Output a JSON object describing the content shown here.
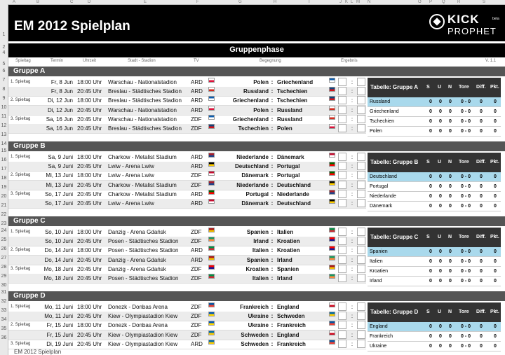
{
  "sheet": {
    "title": "EM 2012 Spielplan",
    "section": "Gruppenphase",
    "logo_top": "KICK",
    "logo_bottom": "PROPHET",
    "logo_beta": "beta",
    "tab_label": "EM 2012 Spielplan",
    "version": "V. 1.1"
  },
  "columns": [
    "A",
    "B",
    "C",
    "D",
    "E",
    "F",
    "G",
    "H",
    "I",
    "J",
    "K",
    "L",
    "M",
    "N",
    "O",
    "P",
    "Q",
    "R",
    "S"
  ],
  "rownums": [
    "1",
    "2",
    "4",
    "5",
    "6",
    "7",
    "8",
    "9",
    "10",
    "11",
    "12",
    "13",
    "14",
    "15",
    "16",
    "17",
    "18",
    "19",
    "20",
    "21",
    "22",
    "23",
    "24",
    "25",
    "26",
    "27",
    "28",
    "29",
    "30",
    "31",
    "32",
    "33",
    "34",
    "35",
    "36"
  ],
  "headers": {
    "spieltag": "Spieltag",
    "termin": "Termin",
    "uhrzeit": "Uhrzeit",
    "stadt": "Stadt - Stadion",
    "tv": "TV",
    "begegnung": "Begegnung",
    "ergebnis": "Ergebnis"
  },
  "table_header": {
    "s": "S",
    "u": "U",
    "n": "N",
    "tore": "Tore",
    "diff": "Diff.",
    "pkt": "Pkt."
  },
  "groups": [
    {
      "name": "Gruppe A",
      "table_title": "Tabelle: Gruppe A",
      "matches": [
        {
          "spt": "1. Spieltag",
          "day": "Fr, 8 Jun",
          "time": "18:00 Uhr",
          "venue": "Warschau - Nationalstadion",
          "tv": "ARD",
          "home": "Polen",
          "away": "Griechenland",
          "hf": "pl",
          "af": "gr"
        },
        {
          "spt": "",
          "day": "Fr, 8 Jun",
          "time": "20:45 Uhr",
          "venue": "Breslau - Städtisches Stadion",
          "tv": "ARD",
          "home": "Russland",
          "away": "Tschechien",
          "hf": "ru",
          "af": "cz"
        },
        {
          "spt": "2. Spieltag",
          "day": "Di, 12 Jun",
          "time": "18:00 Uhr",
          "venue": "Breslau - Städtisches Stadion",
          "tv": "ARD",
          "home": "Griechenland",
          "away": "Tschechien",
          "hf": "gr",
          "af": "cz"
        },
        {
          "spt": "",
          "day": "Di, 12 Jun",
          "time": "20:45 Uhr",
          "venue": "Warschau - Nationalstadion",
          "tv": "ARD",
          "home": "Polen",
          "away": "Russland",
          "hf": "pl",
          "af": "ru"
        },
        {
          "spt": "3. Spieltag",
          "day": "Sa, 16 Jun",
          "time": "20:45 Uhr",
          "venue": "Warschau - Nationalstadion",
          "tv": "ZDF",
          "home": "Griechenland",
          "away": "Russland",
          "hf": "gr",
          "af": "ru"
        },
        {
          "spt": "",
          "day": "Sa, 16 Jun",
          "time": "20:45 Uhr",
          "venue": "Breslau - Städtisches Stadion",
          "tv": "ZDF",
          "home": "Tschechien",
          "away": "Polen",
          "hf": "cz",
          "af": "pl"
        }
      ],
      "table": [
        "Russland",
        "Griechenland",
        "Tschechien",
        "Polen"
      ]
    },
    {
      "name": "Gruppe B",
      "table_title": "Tabelle: Gruppe B",
      "matches": [
        {
          "spt": "1. Spieltag",
          "day": "Sa, 9 Juni",
          "time": "18:00 Uhr",
          "venue": "Charkow - Metalist Stadium",
          "tv": "ARD",
          "home": "Niederlande",
          "away": "Dänemark",
          "hf": "nl",
          "af": "dk"
        },
        {
          "spt": "",
          "day": "Sa, 9 Juni",
          "time": "20:45 Uhr",
          "venue": "Lwiw - Arena Lwiw",
          "tv": "ARD",
          "home": "Deutschland",
          "away": "Portugal",
          "hf": "de",
          "af": "pt"
        },
        {
          "spt": "2. Spieltag",
          "day": "Mi, 13 Juni",
          "time": "18:00 Uhr",
          "venue": "Lwiw - Arena Lwiw",
          "tv": "ZDF",
          "home": "Dänemark",
          "away": "Portugal",
          "hf": "dk",
          "af": "pt"
        },
        {
          "spt": "",
          "day": "Mi, 13 Juni",
          "time": "20:45 Uhr",
          "venue": "Charkow - Metalist Stadium",
          "tv": "ZDF",
          "home": "Niederlande",
          "away": "Deutschland",
          "hf": "nl",
          "af": "de"
        },
        {
          "spt": "3. Spieltag",
          "day": "So, 17 Juni",
          "time": "20:45 Uhr",
          "venue": "Charkow - Metalist Stadium",
          "tv": "ARD",
          "home": "Portugal",
          "away": "Niederlande",
          "hf": "pt",
          "af": "nl"
        },
        {
          "spt": "",
          "day": "So, 17 Juni",
          "time": "20:45 Uhr",
          "venue": "Lwiw - Arena Lwiw",
          "tv": "ARD",
          "home": "Dänemark",
          "away": "Deutschland",
          "hf": "dk",
          "af": "de"
        }
      ],
      "table": [
        "Deutschland",
        "Portugal",
        "Niederlande",
        "Dänemark"
      ]
    },
    {
      "name": "Gruppe C",
      "table_title": "Tabelle: Gruppe C",
      "matches": [
        {
          "spt": "1. Spieltag",
          "day": "So, 10 Juni",
          "time": "18:00 Uhr",
          "venue": "Danzig - Arena Gdańsk",
          "tv": "ZDF",
          "home": "Spanien",
          "away": "Italien",
          "hf": "es",
          "af": "it"
        },
        {
          "spt": "",
          "day": "So, 10 Juni",
          "time": "20:45 Uhr",
          "venue": "Posen - Städtisches Stadion",
          "tv": "ZDF",
          "home": "Irland",
          "away": "Kroatien",
          "hf": "ie",
          "af": "hr"
        },
        {
          "spt": "2. Spieltag",
          "day": "Do, 14 Juni",
          "time": "18:00 Uhr",
          "venue": "Posen - Städtisches Stadion",
          "tv": "ARD",
          "home": "Italien",
          "away": "Kroatien",
          "hf": "it",
          "af": "hr"
        },
        {
          "spt": "",
          "day": "Do, 14 Juni",
          "time": "20:45 Uhr",
          "venue": "Danzig - Arena Gdańsk",
          "tv": "ARD",
          "home": "Spanien",
          "away": "Irland",
          "hf": "es",
          "af": "ie"
        },
        {
          "spt": "3. Spieltag",
          "day": "Mo, 18 Juni",
          "time": "20:45 Uhr",
          "venue": "Danzig - Arena Gdańsk",
          "tv": "ZDF",
          "home": "Kroatien",
          "away": "Spanien",
          "hf": "hr",
          "af": "es"
        },
        {
          "spt": "",
          "day": "Mo, 18 Juni",
          "time": "20:45 Uhr",
          "venue": "Posen - Städtisches Stadion",
          "tv": "ZDF",
          "home": "Italien",
          "away": "Irland",
          "hf": "it",
          "af": "ie"
        }
      ],
      "table": [
        "Spanien",
        "Italien",
        "Kroatien",
        "Irland"
      ]
    },
    {
      "name": "Gruppe D",
      "table_title": "Tabelle: Gruppe D",
      "matches": [
        {
          "spt": "1. Spieltag",
          "day": "Mo, 11 Juni",
          "time": "18:00 Uhr",
          "venue": "Donezk - Donbas Arena",
          "tv": "ZDF",
          "home": "Frankreich",
          "away": "England",
          "hf": "fr",
          "af": "en"
        },
        {
          "spt": "",
          "day": "Mo, 11 Juni",
          "time": "20:45 Uhr",
          "venue": "Kiew - Olympiastadion Kiew",
          "tv": "ZDF",
          "home": "Ukraine",
          "away": "Schweden",
          "hf": "ua",
          "af": "se"
        },
        {
          "spt": "2. Spieltag",
          "day": "Fr, 15 Juni",
          "time": "18:00 Uhr",
          "venue": "Donezk - Donbas Arena",
          "tv": "ZDF",
          "home": "Ukraine",
          "away": "Frankreich",
          "hf": "ua",
          "af": "fr"
        },
        {
          "spt": "",
          "day": "Fr, 15 Juni",
          "time": "20:45 Uhr",
          "venue": "Kiew - Olympiastadion Kiew",
          "tv": "ZDF",
          "home": "Schweden",
          "away": "England",
          "hf": "se",
          "af": "en"
        },
        {
          "spt": "3. Spieltag",
          "day": "Di, 19 Juni",
          "time": "20:45 Uhr",
          "venue": "Kiew - Olympiastadion Kiew",
          "tv": "ARD",
          "home": "Schweden",
          "away": "Frankreich",
          "hf": "se",
          "af": "fr"
        }
      ],
      "table": [
        "England",
        "Frankreich",
        "Ukraine"
      ]
    }
  ],
  "zero": "0",
  "tore": "0 - 0",
  "colon": ":",
  "flag_colors": {
    "pl": [
      "#ffffff",
      "#dc143c"
    ],
    "gr": [
      "#0d5eaf",
      "#ffffff"
    ],
    "ru": [
      "#ffffff",
      "#d52b1e"
    ],
    "cz": [
      "#11457e",
      "#d7141a"
    ],
    "nl": [
      "#ae1c28",
      "#21468b"
    ],
    "dk": [
      "#c60c30",
      "#ffffff"
    ],
    "de": [
      "#000000",
      "#ffce00"
    ],
    "pt": [
      "#006600",
      "#ff0000"
    ],
    "es": [
      "#aa151b",
      "#f1bf00"
    ],
    "it": [
      "#009246",
      "#ce2b37"
    ],
    "ie": [
      "#169b62",
      "#ff883e"
    ],
    "hr": [
      "#ff0000",
      "#171796"
    ],
    "fr": [
      "#0055a4",
      "#ef4135"
    ],
    "en": [
      "#ffffff",
      "#cf081f"
    ],
    "ua": [
      "#0057b7",
      "#ffd700"
    ],
    "se": [
      "#006aa7",
      "#fecc00"
    ]
  }
}
